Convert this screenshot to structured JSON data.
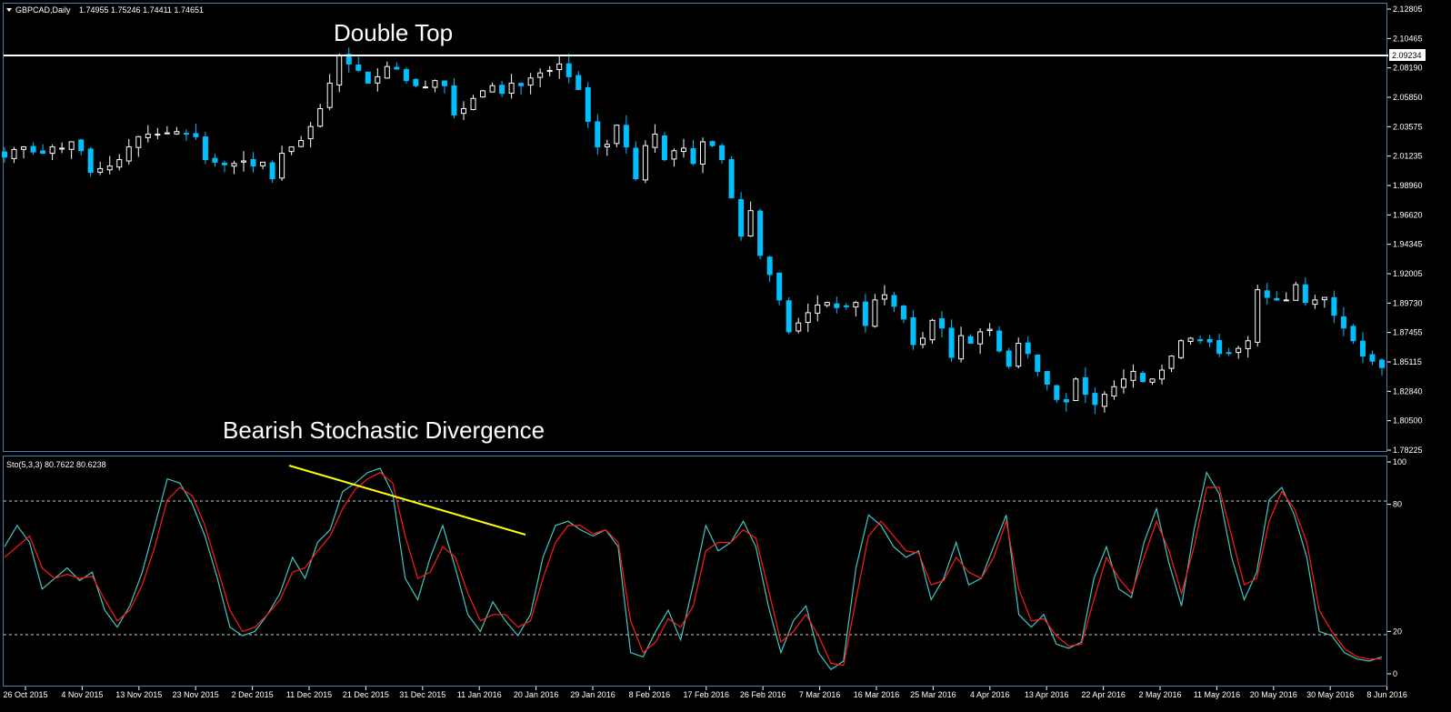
{
  "header": {
    "symbol": "GBPCAD,Daily",
    "ohlc": "1.74955 1.75246 1.74411 1.74651",
    "dropdown_icon": "triangle-down-icon"
  },
  "annotations": {
    "double_top": "Double Top",
    "divergence": "Bearish Stochastic Divergence"
  },
  "price_axis": {
    "ticks": [
      "2.12805",
      "2.10465",
      "2.08190",
      "2.05850",
      "2.03575",
      "2.01235",
      "1.98960",
      "1.96620",
      "1.94345",
      "1.92005",
      "1.89730",
      "1.87455",
      "1.85115",
      "1.82840",
      "1.80500",
      "1.78225"
    ],
    "current_level": "2.09234"
  },
  "stoch_panel": {
    "label": "Sto(5,3,3) 80.7622 80.6238",
    "ticks": [
      "100",
      "80",
      "20",
      "0"
    ]
  },
  "date_axis": [
    "26 Oct 2015",
    "4 Nov 2015",
    "13 Nov 2015",
    "23 Nov 2015",
    "2 Dec 2015",
    "11 Dec 2015",
    "21 Dec 2015",
    "31 Dec 2015",
    "11 Jan 2016",
    "20 Jan 2016",
    "29 Jan 2016",
    "8 Feb 2016",
    "17 Feb 2016",
    "26 Feb 2016",
    "7 Mar 2016",
    "16 Mar 2016",
    "25 Mar 2016",
    "4 Apr 2016",
    "13 Apr 2016",
    "22 Apr 2016",
    "2 May 2016",
    "11 May 2016",
    "20 May 2016",
    "30 May 2016",
    "8 Jun 2016"
  ],
  "colors": {
    "background": "#000000",
    "frame": "#4a7fb0",
    "bull_candle": "#ffffff",
    "bear_candle": "#00bfff",
    "k_line": "#3fc8c8",
    "d_line": "#ff1a1a",
    "trendline": "#ffff00",
    "level_line": "#ffffff"
  },
  "chart_data": [
    {
      "type": "line",
      "subtype": "candlestick",
      "title": "GBPCAD,Daily",
      "ylim": [
        1.78225,
        2.12805
      ],
      "x_start": "26 Oct 2015",
      "x_end": "8 Jun 2016",
      "close_series": [
        2.012,
        2.018,
        2.02,
        2.016,
        2.015,
        2.02,
        2.019,
        2.024,
        2.017,
        2.0,
        2.003,
        2.005,
        2.01,
        2.02,
        2.028,
        2.03,
        2.03,
        2.031,
        2.032,
        2.03,
        2.028,
        2.01,
        2.008,
        2.006,
        2.007,
        2.009,
        2.005,
        2.008,
        1.995,
        2.015,
        2.02,
        2.025,
        2.036,
        2.05,
        2.07,
        2.092,
        2.085,
        2.08,
        2.07,
        2.075,
        2.083,
        2.081,
        2.072,
        2.068,
        2.067,
        2.072,
        2.068,
        2.045,
        2.05,
        2.058,
        2.064,
        2.068,
        2.062,
        2.07,
        2.068,
        2.074,
        2.078,
        2.08,
        2.085,
        2.075,
        2.065,
        2.04,
        2.02,
        2.022,
        2.037,
        2.02,
        1.995,
        2.021,
        2.03,
        2.01,
        2.017,
        2.019,
        2.007,
        2.024,
        2.021,
        2.01,
        1.98,
        1.95,
        1.97,
        1.935,
        1.92,
        1.9,
        1.875,
        1.882,
        1.89,
        1.896,
        1.898,
        1.894,
        1.895,
        1.898,
        1.88,
        1.9,
        1.904,
        1.895,
        1.885,
        1.865,
        1.87,
        1.884,
        1.878,
        1.855,
        1.872,
        1.866,
        1.875,
        1.877,
        1.86,
        1.848,
        1.866,
        1.858,
        1.844,
        1.834,
        1.822,
        1.82,
        1.838,
        1.826,
        1.818,
        1.826,
        1.832,
        1.838,
        1.844,
        1.836,
        1.838,
        1.845,
        1.856,
        1.868,
        1.87,
        1.868,
        1.867,
        1.858,
        1.858,
        1.862,
        1.868,
        1.908,
        1.902,
        1.9,
        1.9,
        1.912,
        1.898,
        1.9,
        1.902,
        1.888,
        1.878,
        1.868,
        1.856,
        1.852,
        1.847
      ],
      "annotations": [
        "Double Top",
        "2.09234"
      ]
    },
    {
      "type": "line",
      "title": "Sto(5,3,3) 80.7622 80.6238",
      "ylim": [
        0,
        100
      ],
      "levels": [
        20,
        80
      ],
      "series": [
        {
          "name": "%K",
          "values": [
            60,
            70,
            62,
            40,
            45,
            50,
            44,
            48,
            30,
            22,
            32,
            48,
            70,
            92,
            90,
            80,
            65,
            45,
            22,
            18,
            20,
            28,
            38,
            55,
            45,
            62,
            68,
            86,
            90,
            95,
            97,
            85,
            45,
            35,
            55,
            70,
            50,
            28,
            20,
            34,
            25,
            18,
            28,
            55,
            70,
            72,
            68,
            65,
            68,
            60,
            10,
            8,
            20,
            30,
            16,
            42,
            70,
            58,
            62,
            72,
            60,
            32,
            10,
            25,
            32,
            10,
            2,
            6,
            50,
            75,
            70,
            60,
            55,
            58,
            35,
            45,
            62,
            42,
            45,
            60,
            75,
            28,
            22,
            28,
            14,
            12,
            15,
            45,
            60,
            40,
            36,
            62,
            78,
            52,
            32,
            68,
            95,
            85,
            55,
            35,
            48,
            82,
            88,
            75,
            55,
            20,
            18,
            10,
            7,
            6,
            8
          ]
        },
        {
          "name": "%D",
          "values": [
            55,
            60,
            65,
            50,
            45,
            47,
            45,
            46,
            35,
            25,
            30,
            42,
            60,
            82,
            88,
            84,
            70,
            50,
            30,
            20,
            22,
            28,
            35,
            48,
            50,
            58,
            65,
            78,
            87,
            92,
            95,
            90,
            65,
            45,
            48,
            60,
            55,
            38,
            25,
            28,
            28,
            22,
            25,
            45,
            62,
            70,
            70,
            66,
            68,
            62,
            25,
            10,
            15,
            26,
            22,
            32,
            58,
            62,
            62,
            68,
            64,
            40,
            15,
            20,
            28,
            18,
            5,
            4,
            35,
            65,
            72,
            65,
            58,
            57,
            42,
            44,
            55,
            48,
            45,
            55,
            72,
            40,
            25,
            26,
            18,
            13,
            14,
            35,
            55,
            45,
            38,
            55,
            72,
            58,
            38,
            60,
            88,
            88,
            65,
            42,
            45,
            72,
            86,
            78,
            62,
            30,
            20,
            12,
            8,
            7,
            7
          ]
        }
      ],
      "annotations": [
        "Bearish Stochastic Divergence"
      ]
    }
  ]
}
